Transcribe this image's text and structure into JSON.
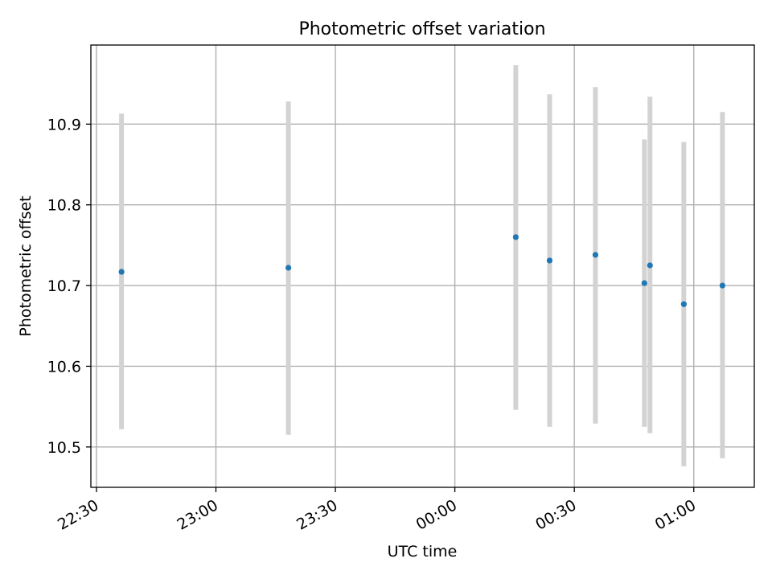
{
  "chart_data": {
    "type": "scatter",
    "title": "Photometric offset variation",
    "xlabel": "UTC time",
    "ylabel": "Photometric offset",
    "x_ticks": [
      {
        "t": "22:30",
        "label": "22:30"
      },
      {
        "t": "23:00",
        "label": "23:00"
      },
      {
        "t": "23:30",
        "label": "23:30"
      },
      {
        "t": "00:00",
        "label": "00:00"
      },
      {
        "t": "00:30",
        "label": "00:30"
      },
      {
        "t": "01:00",
        "label": "01:00"
      }
    ],
    "y_ticks": [
      10.5,
      10.6,
      10.7,
      10.8,
      10.9
    ],
    "xlim": [
      "22:28.6",
      "01:15.2"
    ],
    "ylim": [
      10.45,
      10.998
    ],
    "grid": true,
    "series": [
      {
        "color": "#1f77b4",
        "error_color": "#d3d3d3",
        "points": [
          {
            "x": "22:36.3",
            "y": 10.717,
            "ylo": 10.522,
            "yhi": 10.913
          },
          {
            "x": "23:18.2",
            "y": 10.722,
            "ylo": 10.515,
            "yhi": 10.928
          },
          {
            "x": "00:15.3",
            "y": 10.76,
            "ylo": 10.546,
            "yhi": 10.973
          },
          {
            "x": "00:23.8",
            "y": 10.731,
            "ylo": 10.525,
            "yhi": 10.937
          },
          {
            "x": "00:35.3",
            "y": 10.738,
            "ylo": 10.529,
            "yhi": 10.946
          },
          {
            "x": "00:47.6",
            "y": 10.703,
            "ylo": 10.525,
            "yhi": 10.881
          },
          {
            "x": "00:49.0",
            "y": 10.725,
            "ylo": 10.517,
            "yhi": 10.934
          },
          {
            "x": "00:57.5",
            "y": 10.677,
            "ylo": 10.476,
            "yhi": 10.878
          },
          {
            "x": "01:07.2",
            "y": 10.7,
            "ylo": 10.486,
            "yhi": 10.915
          }
        ]
      }
    ]
  }
}
